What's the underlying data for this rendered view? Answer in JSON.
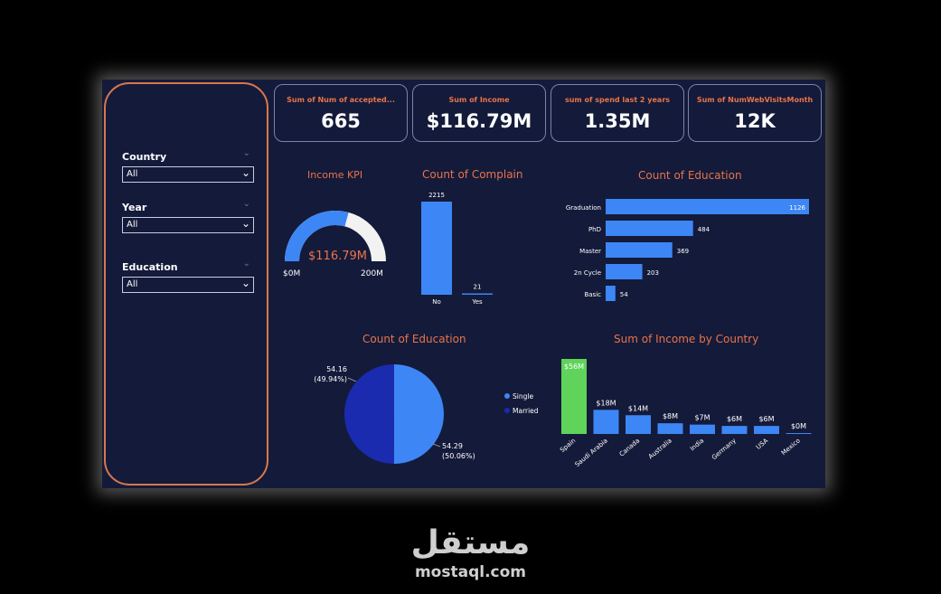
{
  "slicers": [
    {
      "label": "Country",
      "value": "All"
    },
    {
      "label": "Year",
      "value": "All"
    },
    {
      "label": "Education",
      "value": "All"
    }
  ],
  "kpis": [
    {
      "title": "Sum of Num of accepted...",
      "value": "665"
    },
    {
      "title": "Sum of Income",
      "value": "$116.79M"
    },
    {
      "title": "sum of spend last 2 years",
      "value": "1.35M"
    },
    {
      "title": "Sum of NumWebVisitsMonth",
      "value": "12K"
    }
  ],
  "gauge": {
    "title": "Income KPI",
    "value_label": "$116.79M",
    "min_label": "$0M",
    "max_label": "200M",
    "fraction": 0.584
  },
  "watermark": {
    "arabic": "مستقل",
    "domain": "mostaql.com"
  },
  "colors": {
    "accent": "#e8744a",
    "bar": "#3d86f5",
    "bar_highlight": "#5fd35a",
    "married": "#1a2bb0"
  },
  "chart_data": [
    {
      "type": "bar",
      "title": "Count of Complain",
      "categories": [
        "No",
        "Yes"
      ],
      "values": [
        2215,
        21
      ]
    },
    {
      "type": "bar",
      "orientation": "horizontal",
      "title": "Count of Education",
      "categories": [
        "Graduation",
        "PhD",
        "Master",
        "2n Cycle",
        "Basic"
      ],
      "values": [
        1126,
        484,
        369,
        203,
        54
      ]
    },
    {
      "type": "pie",
      "title": "Count of Education",
      "legend": "right",
      "slices": [
        {
          "name": "Single",
          "value": 54.29,
          "percent": "(50.06%)"
        },
        {
          "name": "Married",
          "value": 54.16,
          "percent": "(49.94%)"
        }
      ]
    },
    {
      "type": "bar",
      "title": "Sum of Income by Country",
      "categories": [
        "Spain",
        "Saudi Arabia",
        "Canada",
        "Australia",
        "India",
        "Germany",
        "USA",
        "Mexico"
      ],
      "values": [
        56,
        18,
        14,
        8,
        7,
        6,
        6,
        0.3
      ],
      "labels": [
        "$56M",
        "$18M",
        "$14M",
        "$8M",
        "$7M",
        "$6M",
        "$6M",
        "$0M"
      ]
    }
  ]
}
